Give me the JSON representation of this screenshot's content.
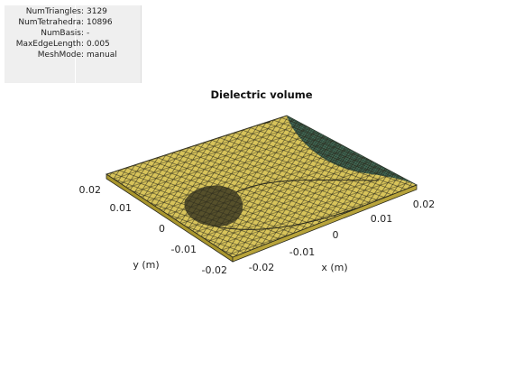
{
  "info": {
    "rows": [
      {
        "key": "NumTriangles",
        "value": "3129"
      },
      {
        "key": "NumTetrahedra",
        "value": "10896"
      },
      {
        "key": "NumBasis",
        "value": "-"
      },
      {
        "key": "MaxEdgeLength",
        "value": "0.005"
      },
      {
        "key": "MeshMode",
        "value": "manual"
      }
    ]
  },
  "plot": {
    "title": "Dielectric volume",
    "x_axis": {
      "label": "x (m)",
      "ticks": [
        "-0.02",
        "-0.01",
        "0",
        "0.01",
        "0.02"
      ]
    },
    "y_axis": {
      "label": "y (m)",
      "ticks": [
        "0.02",
        "0.01",
        "0",
        "-0.01",
        "-0.02"
      ]
    },
    "colors": {
      "dielectric_face": "#d8c45a",
      "mesh_edge": "#2b2a1c",
      "dense_region": "#2f5d55",
      "side_face": "#a9962d"
    }
  }
}
